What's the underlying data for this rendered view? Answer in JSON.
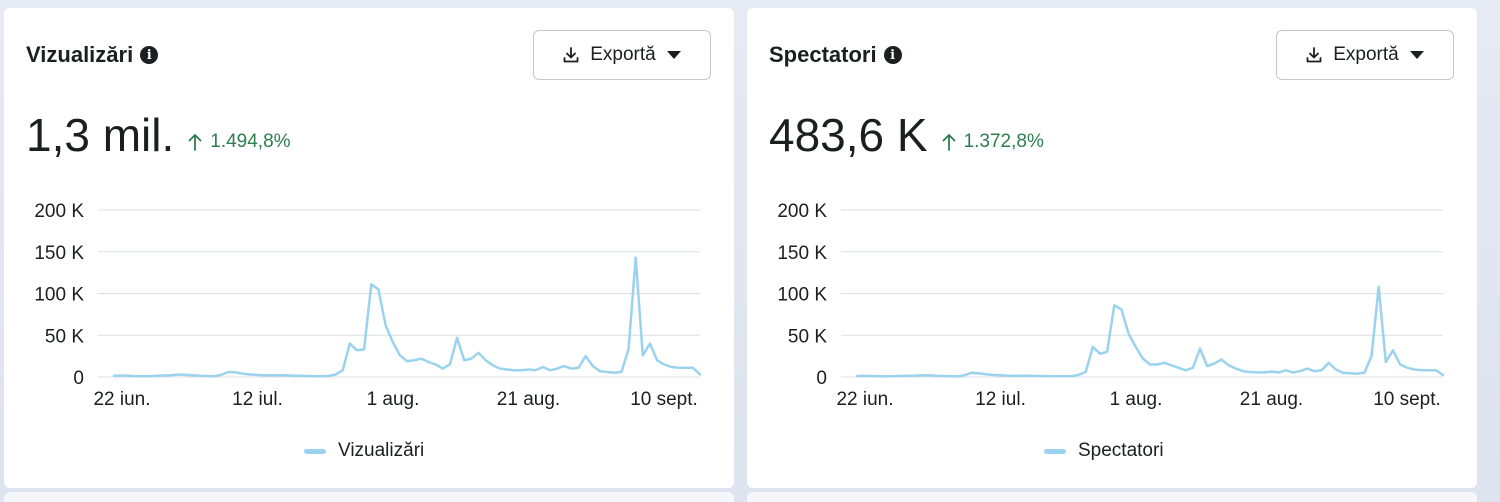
{
  "colors": {
    "line": "#9bd3ef",
    "grid": "#dcdfe4",
    "text": "#1c1e21",
    "positive": "#2e7d4f"
  },
  "icons": {
    "info": "info-icon",
    "download": "download-icon",
    "caret": "caret-down-icon",
    "arrow_up": "arrow-up-icon"
  },
  "cards": [
    {
      "title": "Vizualizări",
      "export_label": "Exportă",
      "value": "1,3 mil.",
      "delta": "1.494,8%",
      "legend": "Vizualizări"
    },
    {
      "title": "Spectatori",
      "export_label": "Exportă",
      "value": "483,6 K",
      "delta": "1.372,8%",
      "legend": "Spectatori"
    }
  ],
  "chart_data": [
    {
      "type": "line",
      "ylim": [
        0,
        200000
      ],
      "yticks": [
        0,
        50000,
        100000,
        150000,
        200000
      ],
      "ytick_labels": [
        "0",
        "50 K",
        "100 K",
        "150 K",
        "200 K"
      ],
      "xtick_labels": [
        "22 iun.",
        "12 iul.",
        "1 aug.",
        "21 aug.",
        "10 sept."
      ],
      "grid": true,
      "legend_position": "bottom",
      "series": [
        {
          "name": "Vizualizări",
          "values": [
            1500,
            1800,
            1500,
            1000,
            800,
            1000,
            1500,
            1800,
            2000,
            3000,
            2500,
            2000,
            1500,
            1200,
            800,
            2500,
            6000,
            5500,
            4000,
            3000,
            2500,
            2000,
            2000,
            2000,
            2000,
            1500,
            1500,
            1200,
            1000,
            1000,
            1200,
            3000,
            8000,
            40000,
            32000,
            33000,
            111000,
            105000,
            62000,
            42000,
            26000,
            19000,
            20000,
            22000,
            18000,
            15000,
            10000,
            15000,
            47000,
            20000,
            22000,
            29000,
            20000,
            14000,
            10000,
            9000,
            8000,
            8000,
            9000,
            8000,
            12000,
            8000,
            10000,
            13000,
            10000,
            11000,
            25000,
            13000,
            7000,
            6000,
            5000,
            6000,
            33000,
            143000,
            26000,
            40000,
            20000,
            15000,
            12000,
            11000,
            11000,
            11000,
            3000
          ]
        }
      ]
    },
    {
      "type": "line",
      "ylim": [
        0,
        200000
      ],
      "yticks": [
        0,
        50000,
        100000,
        150000,
        200000
      ],
      "ytick_labels": [
        "0",
        "50 K",
        "100 K",
        "150 K",
        "200 K"
      ],
      "xtick_labels": [
        "22 iun.",
        "12 iul.",
        "1 aug.",
        "21 aug.",
        "10 sept."
      ],
      "grid": true,
      "legend_position": "bottom",
      "series": [
        {
          "name": "Spectatori",
          "values": [
            1200,
            1400,
            1200,
            900,
            700,
            900,
            1200,
            1400,
            1600,
            2200,
            2000,
            1600,
            1200,
            1000,
            700,
            2000,
            5000,
            4500,
            3300,
            2500,
            2000,
            1600,
            1600,
            1600,
            1600,
            1200,
            1200,
            1000,
            800,
            800,
            1000,
            2500,
            6000,
            36000,
            28000,
            30000,
            86000,
            81000,
            52000,
            36000,
            22000,
            15000,
            15000,
            17000,
            14000,
            11000,
            8000,
            11000,
            34000,
            13000,
            16000,
            21000,
            14000,
            10000,
            7000,
            6000,
            5500,
            5500,
            6500,
            5500,
            8000,
            5500,
            7000,
            10000,
            7000,
            8000,
            17000,
            9000,
            5000,
            4500,
            4000,
            5000,
            25000,
            108000,
            18000,
            32000,
            15000,
            11000,
            9000,
            8000,
            8000,
            8000,
            2500
          ]
        }
      ]
    }
  ]
}
